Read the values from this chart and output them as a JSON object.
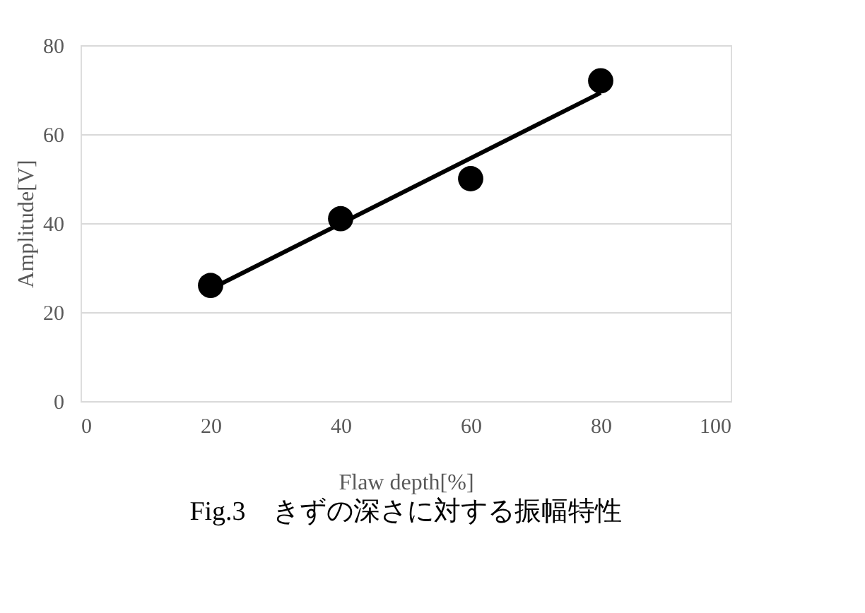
{
  "chart_data": {
    "type": "scatter",
    "xlabel": "Flaw depth[%]",
    "ylabel": "Amplitude[V]",
    "annotations": [
      "Fig.3　きずの深さに対する振幅特性"
    ],
    "series": [
      {
        "type": "line",
        "color": "#000000",
        "x": [
          20,
          80
        ],
        "values": [
          25.2,
          69.3
        ],
        "marker": "none",
        "line_style": "solid"
      },
      {
        "color": "#000000",
        "x": [
          20,
          40,
          60,
          80
        ],
        "values": [
          26,
          41,
          50,
          72
        ],
        "marker": "circle"
      }
    ],
    "xlim": [
      0,
      100
    ],
    "xticks": [
      0,
      20,
      40,
      60,
      80,
      100
    ],
    "ylim": [
      0,
      80
    ],
    "yticks": [
      0,
      20,
      40,
      60,
      80
    ],
    "grid": "y"
  }
}
